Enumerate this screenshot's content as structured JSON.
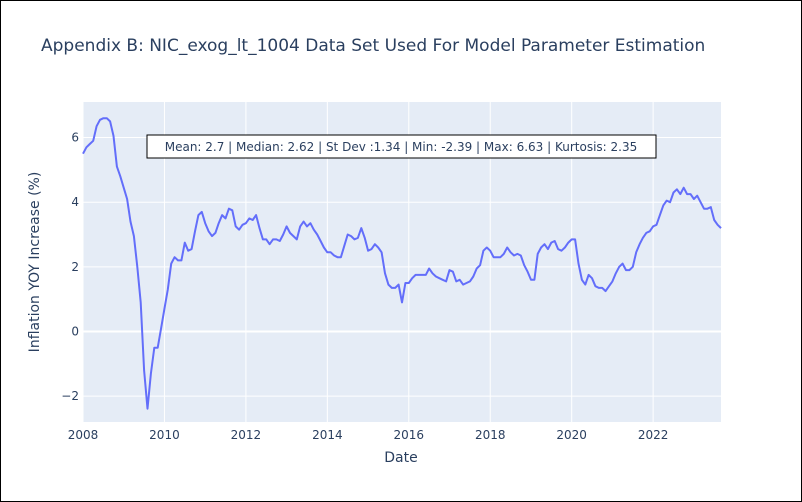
{
  "chart_data": {
    "type": "line",
    "title": "Appendix B: NIC_exog_lt_1004 Data Set Used For Model Parameter Estimation",
    "xlabel": "Date",
    "ylabel": "Inflation YOY Increase (%)",
    "xlim": [
      "2008-01-01",
      "2023-09-01"
    ],
    "ylim": [
      -2.8,
      7.1
    ],
    "x_ticks": [
      "2008",
      "2010",
      "2012",
      "2014",
      "2016",
      "2018",
      "2020",
      "2022"
    ],
    "y_ticks": [
      -2,
      0,
      2,
      4,
      6
    ],
    "grid": true,
    "legend": "none",
    "annotation": "Mean: 2.7 | Median: 2.62 | St Dev :1.34 | Min: -2.39 | Max: 6.63 | Kurtosis: 2.35",
    "colors": {
      "line": "#636efa",
      "plot_bg": "#e5ecf6",
      "grid": "#ffffff",
      "text": "#2a3f5f"
    },
    "series": [
      {
        "x": [
          "2008-01",
          "2008-02",
          "2008-03",
          "2008-04",
          "2008-05",
          "2008-06",
          "2008-07",
          "2008-08",
          "2008-09",
          "2008-10",
          "2008-11",
          "2008-12",
          "2009-01",
          "2009-02",
          "2009-03",
          "2009-04",
          "2009-05",
          "2009-06",
          "2009-07",
          "2009-08",
          "2009-09",
          "2009-10",
          "2009-11",
          "2009-12",
          "2010-01",
          "2010-02",
          "2010-03",
          "2010-04",
          "2010-05",
          "2010-06",
          "2010-07",
          "2010-08",
          "2010-09",
          "2010-10",
          "2010-11",
          "2010-12",
          "2011-01",
          "2011-02",
          "2011-03",
          "2011-04",
          "2011-05",
          "2011-06",
          "2011-07",
          "2011-08",
          "2011-09",
          "2011-10",
          "2011-11",
          "2011-12",
          "2012-01",
          "2012-02",
          "2012-03",
          "2012-04",
          "2012-05",
          "2012-06",
          "2012-07",
          "2012-08",
          "2012-09",
          "2012-10",
          "2012-11",
          "2012-12",
          "2013-01",
          "2013-02",
          "2013-03",
          "2013-04",
          "2013-05",
          "2013-06",
          "2013-07",
          "2013-08",
          "2013-09",
          "2013-10",
          "2013-11",
          "2013-12",
          "2014-01",
          "2014-02",
          "2014-03",
          "2014-04",
          "2014-05",
          "2014-06",
          "2014-07",
          "2014-08",
          "2014-09",
          "2014-10",
          "2014-11",
          "2014-12",
          "2015-01",
          "2015-02",
          "2015-03",
          "2015-04",
          "2015-05",
          "2015-06",
          "2015-07",
          "2015-08",
          "2015-09",
          "2015-10",
          "2015-11",
          "2015-12",
          "2016-01",
          "2016-02",
          "2016-03",
          "2016-04",
          "2016-05",
          "2016-06",
          "2016-07",
          "2016-08",
          "2016-09",
          "2016-10",
          "2016-11",
          "2016-12",
          "2017-01",
          "2017-02",
          "2017-03",
          "2017-04",
          "2017-05",
          "2017-06",
          "2017-07",
          "2017-08",
          "2017-09",
          "2017-10",
          "2017-11",
          "2017-12",
          "2018-01",
          "2018-02",
          "2018-03",
          "2018-04",
          "2018-05",
          "2018-06",
          "2018-07",
          "2018-08",
          "2018-09",
          "2018-10",
          "2018-11",
          "2018-12",
          "2019-01",
          "2019-02",
          "2019-03",
          "2019-04",
          "2019-05",
          "2019-06",
          "2019-07",
          "2019-08",
          "2019-09",
          "2019-10",
          "2019-11",
          "2019-12",
          "2020-01",
          "2020-02",
          "2020-03",
          "2020-04",
          "2020-05",
          "2020-06",
          "2020-07",
          "2020-08",
          "2020-09",
          "2020-10",
          "2020-11",
          "2020-12",
          "2021-01",
          "2021-02",
          "2021-03",
          "2021-04",
          "2021-05",
          "2021-06",
          "2021-07",
          "2021-08",
          "2021-09",
          "2021-10",
          "2021-11",
          "2021-12",
          "2022-01",
          "2022-02",
          "2022-03",
          "2022-04",
          "2022-05",
          "2022-06",
          "2022-07",
          "2022-08",
          "2022-09",
          "2022-10",
          "2022-11",
          "2022-12",
          "2023-01",
          "2023-02",
          "2023-03",
          "2023-04",
          "2023-05",
          "2023-06",
          "2023-07",
          "2023-08",
          "2023-09"
        ],
        "y": [
          5.5,
          5.7,
          5.8,
          5.9,
          6.35,
          6.55,
          6.6,
          6.6,
          6.5,
          6.05,
          5.1,
          4.8,
          4.45,
          4.1,
          3.4,
          2.95,
          2.0,
          0.9,
          -1.2,
          -2.39,
          -1.3,
          -0.5,
          -0.5,
          0.1,
          0.7,
          1.3,
          2.1,
          2.3,
          2.2,
          2.2,
          2.75,
          2.5,
          2.55,
          3.1,
          3.6,
          3.7,
          3.35,
          3.1,
          2.95,
          3.05,
          3.35,
          3.6,
          3.5,
          3.8,
          3.75,
          3.25,
          3.15,
          3.3,
          3.35,
          3.5,
          3.45,
          3.6,
          3.2,
          2.85,
          2.85,
          2.7,
          2.85,
          2.85,
          2.8,
          3.0,
          3.25,
          3.05,
          2.95,
          2.85,
          3.25,
          3.4,
          3.25,
          3.35,
          3.15,
          3.0,
          2.8,
          2.6,
          2.45,
          2.45,
          2.35,
          2.3,
          2.3,
          2.65,
          3.0,
          2.95,
          2.85,
          2.9,
          3.2,
          2.9,
          2.5,
          2.55,
          2.7,
          2.6,
          2.45,
          1.8,
          1.45,
          1.35,
          1.35,
          1.45,
          0.9,
          1.5,
          1.5,
          1.65,
          1.75,
          1.75,
          1.75,
          1.75,
          1.95,
          1.8,
          1.7,
          1.65,
          1.6,
          1.55,
          1.9,
          1.85,
          1.55,
          1.6,
          1.45,
          1.5,
          1.55,
          1.7,
          1.95,
          2.05,
          2.5,
          2.6,
          2.5,
          2.3,
          2.3,
          2.3,
          2.4,
          2.6,
          2.45,
          2.35,
          2.4,
          2.35,
          2.05,
          1.85,
          1.6,
          1.6,
          2.4,
          2.6,
          2.7,
          2.55,
          2.75,
          2.8,
          2.55,
          2.5,
          2.6,
          2.75,
          2.85,
          2.85,
          2.1,
          1.6,
          1.45,
          1.75,
          1.65,
          1.4,
          1.35,
          1.35,
          1.25,
          1.4,
          1.55,
          1.8,
          2.0,
          2.1,
          1.9,
          1.9,
          2.0,
          2.45,
          2.7,
          2.9,
          3.05,
          3.1,
          3.25,
          3.3,
          3.6,
          3.9,
          4.05,
          4.0,
          4.3,
          4.4,
          4.25,
          4.45,
          4.25,
          4.25,
          4.1,
          4.2,
          4.0,
          3.8,
          3.8,
          3.85,
          3.45,
          3.3,
          3.2
        ]
      }
    ]
  }
}
